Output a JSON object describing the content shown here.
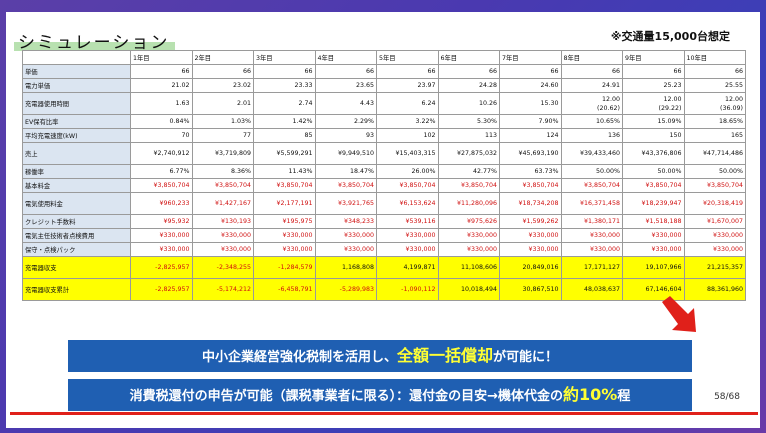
{
  "title": "シミュレーション",
  "note": "※交通量15,000台想定",
  "years": [
    "1年目",
    "2年目",
    "3年目",
    "4年目",
    "5年目",
    "6年目",
    "7年目",
    "8年目",
    "9年目",
    "10年目"
  ],
  "rows": [
    {
      "label": "単価",
      "cls": "",
      "tall": false,
      "values": [
        "66",
        "66",
        "66",
        "66",
        "66",
        "66",
        "66",
        "66",
        "66",
        "66"
      ]
    },
    {
      "label": "電力単価",
      "cls": "",
      "tall": false,
      "values": [
        "21.02",
        "23.02",
        "23.33",
        "23.65",
        "23.97",
        "24.28",
        "24.60",
        "24.91",
        "25.23",
        "25.55"
      ]
    },
    {
      "label": "充電器使用時間",
      "cls": "",
      "tall": true,
      "values": [
        "1.63",
        "2.01",
        "2.74",
        "4.43",
        "6.24",
        "10.26",
        "15.30",
        "12.00\n(20.62)",
        "12.00\n(29.22)",
        "12.00\n(36.09)"
      ]
    },
    {
      "label": "EV保有比率",
      "cls": "",
      "tall": false,
      "values": [
        "0.84%",
        "1.03%",
        "1.42%",
        "2.29%",
        "3.22%",
        "5.30%",
        "7.90%",
        "10.65%",
        "15.09%",
        "18.65%"
      ]
    },
    {
      "label": "平均充電速度(kW)",
      "cls": "",
      "tall": false,
      "values": [
        "70",
        "77",
        "85",
        "93",
        "102",
        "113",
        "124",
        "136",
        "150",
        "165"
      ]
    },
    {
      "label": "売上",
      "cls": "",
      "tall": true,
      "values": [
        "¥2,740,912",
        "¥3,719,809",
        "¥5,599,291",
        "¥9,949,510",
        "¥15,403,315",
        "¥27,875,032",
        "¥45,693,190",
        "¥39,433,460",
        "¥43,376,806",
        "¥47,714,486"
      ]
    },
    {
      "label": "稼働率",
      "cls": "",
      "tall": false,
      "values": [
        "6.77%",
        "8.36%",
        "11.43%",
        "18.47%",
        "26.00%",
        "42.77%",
        "63.73%",
        "50.00%",
        "50.00%",
        "50.00%"
      ]
    },
    {
      "label": "基本料金",
      "cls": "red",
      "tall": false,
      "values": [
        "¥3,850,704",
        "¥3,850,704",
        "¥3,850,704",
        "¥3,850,704",
        "¥3,850,704",
        "¥3,850,704",
        "¥3,850,704",
        "¥3,850,704",
        "¥3,850,704",
        "¥3,850,704"
      ]
    },
    {
      "label": "電気使用料金",
      "cls": "red",
      "tall": true,
      "values": [
        "¥960,233",
        "¥1,427,167",
        "¥2,177,191",
        "¥3,921,765",
        "¥6,153,624",
        "¥11,280,096",
        "¥18,734,208",
        "¥16,371,458",
        "¥18,239,947",
        "¥20,318,419"
      ]
    },
    {
      "label": "クレジット手数料",
      "cls": "red",
      "tall": false,
      "values": [
        "¥95,932",
        "¥130,193",
        "¥195,975",
        "¥348,233",
        "¥539,116",
        "¥975,626",
        "¥1,599,262",
        "¥1,380,171",
        "¥1,518,188",
        "¥1,670,007"
      ]
    },
    {
      "label": "電気主任技術者点検費用",
      "cls": "red",
      "tall": false,
      "values": [
        "¥330,000",
        "¥330,000",
        "¥330,000",
        "¥330,000",
        "¥330,000",
        "¥330,000",
        "¥330,000",
        "¥330,000",
        "¥330,000",
        "¥330,000"
      ]
    },
    {
      "label": "保守・点検パック",
      "cls": "red",
      "tall": false,
      "values": [
        "¥330,000",
        "¥330,000",
        "¥330,000",
        "¥330,000",
        "¥330,000",
        "¥330,000",
        "¥330,000",
        "¥330,000",
        "¥330,000",
        "¥330,000"
      ]
    },
    {
      "label": "充電器収支",
      "cls": "yel",
      "tall": true,
      "values": [
        "-2,825,957",
        "-2,348,255",
        "-1,284,579",
        "1,168,808",
        "4,199,871",
        "11,108,606",
        "20,849,016",
        "17,171,127",
        "19,107,966",
        "21,215,357"
      ]
    },
    {
      "label": "充電器収支累計",
      "cls": "yel",
      "tall": true,
      "values": [
        "-2,825,957",
        "-5,174,212",
        "-6,458,791",
        "-5,289,983",
        "-1,090,112",
        "10,018,494",
        "30,867,510",
        "48,038,637",
        "67,146,604",
        "88,361,960"
      ]
    }
  ],
  "banner1": {
    "before": "中小企業経営強化税制を活用し、",
    "highlight": "全額一括償却",
    "after": "が可能に！"
  },
  "banner2": {
    "before": "消費税還付の申告が可能（課税事業者に限る）：還付金の目安→機体代金の",
    "highlight": "約10%",
    "after": "程"
  },
  "page_number": "58/68",
  "colors": {
    "accent_red": "#d01010",
    "highlight_yellow": "#ffff00",
    "banner_blue": "#1f5fb2",
    "label_blue": "#dbe5f1"
  }
}
